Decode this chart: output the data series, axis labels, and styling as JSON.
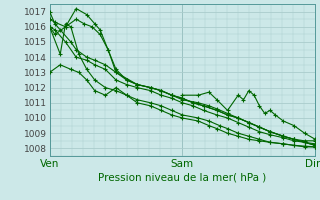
{
  "xlabel": "Pression niveau de la mer( hPa )",
  "bg_color": "#cce8e8",
  "grid_color": "#aacccc",
  "line_color": "#006600",
  "marker": "+",
  "xtick_labels": [
    "Ven",
    "Sam",
    "Dim"
  ],
  "xtick_positions": [
    0.0,
    0.5,
    1.0
  ],
  "ylim": [
    1007.5,
    1017.5
  ],
  "xlim": [
    0.0,
    1.0
  ],
  "yticks": [
    1008,
    1009,
    1010,
    1011,
    1012,
    1013,
    1014,
    1015,
    1016,
    1017
  ],
  "series": [
    {
      "x": [
        0.0,
        0.02,
        0.04,
        0.08,
        0.1,
        0.14,
        0.17,
        0.21,
        0.25,
        0.29,
        0.33,
        0.38,
        0.42,
        0.46,
        0.5,
        0.54,
        0.58,
        0.63,
        0.67,
        0.71,
        0.75,
        0.79,
        0.83,
        0.88,
        0.92,
        0.96,
        1.0
      ],
      "y": [
        1017.0,
        1016.2,
        1015.8,
        1015.0,
        1014.5,
        1014.0,
        1013.8,
        1013.5,
        1013.0,
        1012.5,
        1012.2,
        1012.0,
        1011.8,
        1011.5,
        1011.3,
        1011.0,
        1010.8,
        1010.5,
        1010.2,
        1010.0,
        1009.7,
        1009.4,
        1009.1,
        1008.8,
        1008.6,
        1008.5,
        1008.5
      ]
    },
    {
      "x": [
        0.0,
        0.02,
        0.06,
        0.1,
        0.14,
        0.17,
        0.19,
        0.22,
        0.25,
        0.29,
        0.33,
        0.38,
        0.42,
        0.46,
        0.5,
        0.54,
        0.58,
        0.63,
        0.67,
        0.71,
        0.75,
        0.79,
        0.83,
        0.88,
        0.92,
        0.96,
        1.0
      ],
      "y": [
        1016.0,
        1015.5,
        1016.0,
        1017.2,
        1016.8,
        1016.2,
        1015.8,
        1014.5,
        1013.2,
        1012.5,
        1012.2,
        1012.0,
        1011.8,
        1011.5,
        1011.3,
        1011.0,
        1010.8,
        1010.5,
        1010.2,
        1010.0,
        1009.7,
        1009.4,
        1009.1,
        1008.8,
        1008.6,
        1008.4,
        1008.3
      ]
    },
    {
      "x": [
        0.0,
        0.02,
        0.06,
        0.1,
        0.14,
        0.17,
        0.21,
        0.25,
        0.29,
        0.33,
        0.38,
        0.42,
        0.46,
        0.5,
        0.54,
        0.58,
        0.63,
        0.67,
        0.71,
        0.75,
        0.79,
        0.83,
        0.88,
        0.92,
        0.96,
        1.0
      ],
      "y": [
        1016.0,
        1015.8,
        1015.0,
        1014.0,
        1013.8,
        1013.5,
        1013.2,
        1012.5,
        1012.2,
        1012.0,
        1011.8,
        1011.5,
        1011.3,
        1011.0,
        1010.8,
        1010.5,
        1010.2,
        1010.0,
        1009.7,
        1009.4,
        1009.1,
        1008.9,
        1008.7,
        1008.5,
        1008.4,
        1008.2
      ]
    },
    {
      "x": [
        0.0,
        0.04,
        0.06,
        0.08,
        0.11,
        0.14,
        0.17,
        0.21,
        0.25,
        0.29,
        0.33,
        0.38,
        0.42,
        0.46,
        0.5,
        0.56,
        0.6,
        0.64,
        0.67,
        0.71,
        0.75,
        0.79,
        0.83,
        0.88,
        0.92,
        0.96,
        1.0
      ],
      "y": [
        1016.0,
        1014.2,
        1016.2,
        1016.0,
        1014.2,
        1013.2,
        1012.5,
        1012.0,
        1011.8,
        1011.5,
        1011.2,
        1011.0,
        1010.8,
        1010.5,
        1010.2,
        1010.0,
        1009.8,
        1009.5,
        1009.3,
        1009.0,
        1008.8,
        1008.6,
        1008.4,
        1008.3,
        1008.2,
        1008.1,
        1008.1
      ]
    },
    {
      "x": [
        0.0,
        0.04,
        0.08,
        0.11,
        0.14,
        0.17,
        0.21,
        0.25,
        0.29,
        0.33,
        0.38,
        0.42,
        0.46,
        0.5,
        0.56,
        0.6,
        0.63,
        0.67,
        0.71,
        0.75,
        0.79,
        0.83,
        0.88,
        0.92,
        0.96,
        1.0
      ],
      "y": [
        1013.0,
        1013.5,
        1013.2,
        1013.0,
        1012.5,
        1011.8,
        1011.5,
        1012.0,
        1011.5,
        1011.0,
        1010.8,
        1010.5,
        1010.2,
        1010.0,
        1009.8,
        1009.5,
        1009.3,
        1009.0,
        1008.8,
        1008.6,
        1008.5,
        1008.4,
        1008.3,
        1008.2,
        1008.15,
        1008.1
      ]
    },
    {
      "x": [
        0.0,
        0.02,
        0.06,
        0.1,
        0.13,
        0.16,
        0.19,
        0.22,
        0.25,
        0.33,
        0.38,
        0.42,
        0.46,
        0.5,
        0.56,
        0.6,
        0.63,
        0.67,
        0.71,
        0.75,
        0.79,
        0.83,
        0.88,
        0.92,
        0.96,
        1.0
      ],
      "y": [
        1016.5,
        1016.3,
        1016.0,
        1016.5,
        1016.2,
        1016.0,
        1015.5,
        1014.5,
        1013.0,
        1012.2,
        1012.0,
        1011.8,
        1011.5,
        1011.2,
        1011.0,
        1010.8,
        1010.6,
        1010.3,
        1010.0,
        1009.7,
        1009.4,
        1009.1,
        1008.8,
        1008.6,
        1008.4,
        1008.2
      ]
    },
    {
      "x": [
        0.5,
        0.56,
        0.6,
        0.63,
        0.67,
        0.71,
        0.73,
        0.75,
        0.77,
        0.79,
        0.81,
        0.83,
        0.85,
        0.88,
        0.92,
        0.96,
        1.0
      ],
      "y": [
        1011.5,
        1011.5,
        1011.7,
        1011.2,
        1010.5,
        1011.5,
        1011.2,
        1011.8,
        1011.5,
        1010.8,
        1010.3,
        1010.5,
        1010.2,
        1009.8,
        1009.5,
        1009.0,
        1008.6
      ]
    }
  ]
}
